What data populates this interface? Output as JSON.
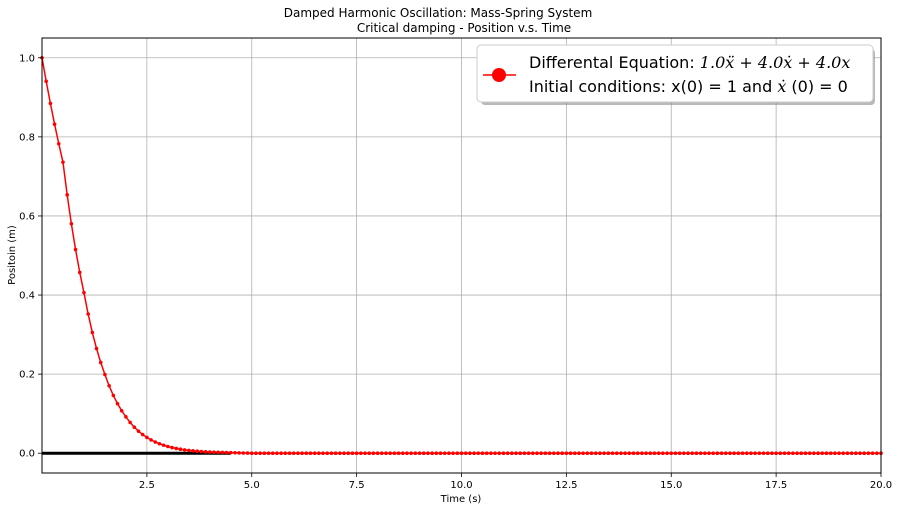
{
  "chart_data": {
    "type": "line",
    "title": "Damped Harmonic Oscillation: Mass-Spring System",
    "subtitle": "Critical damping - Position v.s. Time",
    "xlabel": "Time (s)",
    "ylabel": "Positoin (m)",
    "xlim": [
      0.0,
      20.0
    ],
    "ylim": [
      -0.05,
      1.05
    ],
    "xticks": [
      "2.5",
      "5.0",
      "7.5",
      "10.0",
      "12.5",
      "15.0",
      "17.5",
      "20.0"
    ],
    "yticks": [
      "0.0",
      "0.2",
      "0.4",
      "0.6",
      "0.8",
      "1.0"
    ],
    "grid": true,
    "legend_position": "top-right",
    "legend": {
      "line1_prefix": "Differental Equation: ",
      "line1_math": "1.0ẍ + 4.0ẋ + 4.0x",
      "line2_prefix": "Initial conditions: x(0) = 1 and ",
      "line2_math": "ẋ",
      "line2_suffix": " (0) = 0"
    },
    "series": [
      {
        "color": "#ff0000",
        "marker": "dot",
        "x_start": 0.0,
        "x_end": 20.0,
        "x_step": 0.1,
        "sample_points": [
          {
            "x": 0.0,
            "y": 1.0
          },
          {
            "x": 0.5,
            "y": 0.736
          },
          {
            "x": 1.0,
            "y": 0.406
          },
          {
            "x": 1.5,
            "y": 0.199
          },
          {
            "x": 2.0,
            "y": 0.092
          },
          {
            "x": 2.5,
            "y": 0.04
          },
          {
            "x": 3.0,
            "y": 0.017
          },
          {
            "x": 4.0,
            "y": 0.003
          },
          {
            "x": 5.0,
            "y": 0.0
          },
          {
            "x": 20.0,
            "y": 0.0
          }
        ]
      },
      {
        "color": "#000000",
        "x": [
          0.0,
          4.5
        ],
        "values": [
          0.0,
          0.0
        ]
      }
    ],
    "colors": {
      "curve": "#ff0000",
      "baseline": "#000000",
      "grid": "#b0b0b0"
    }
  }
}
